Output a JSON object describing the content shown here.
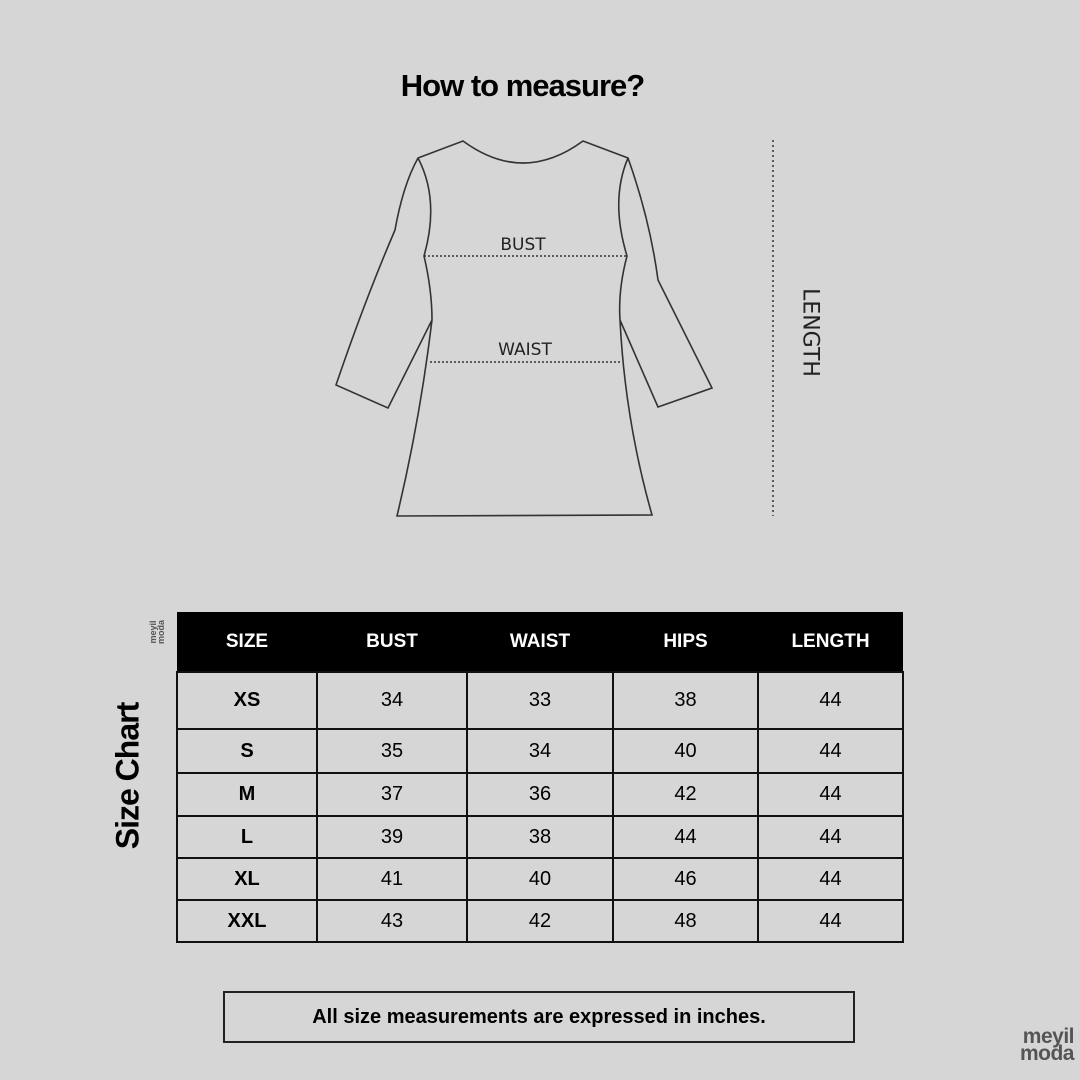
{
  "header": {
    "title": "How to measure?"
  },
  "diagram": {
    "bust_label": "BUST",
    "waist_label": "WAIST",
    "length_label": "LENGTH"
  },
  "side_title": "Size Chart",
  "brand": {
    "line1": "meyil",
    "line2": "moda"
  },
  "table": {
    "headers": [
      "SIZE",
      "BUST",
      "WAIST",
      "HIPS",
      "LENGTH"
    ],
    "rows": [
      [
        "XS",
        "34",
        "33",
        "38",
        "44"
      ],
      [
        "S",
        "35",
        "34",
        "40",
        "44"
      ],
      [
        "M",
        "37",
        "36",
        "42",
        "44"
      ],
      [
        "L",
        "39",
        "38",
        "44",
        "44"
      ],
      [
        "XL",
        "41",
        "40",
        "46",
        "44"
      ],
      [
        "XXL",
        "43",
        "42",
        "48",
        "44"
      ]
    ]
  },
  "note": "All size measurements are expressed in inches."
}
